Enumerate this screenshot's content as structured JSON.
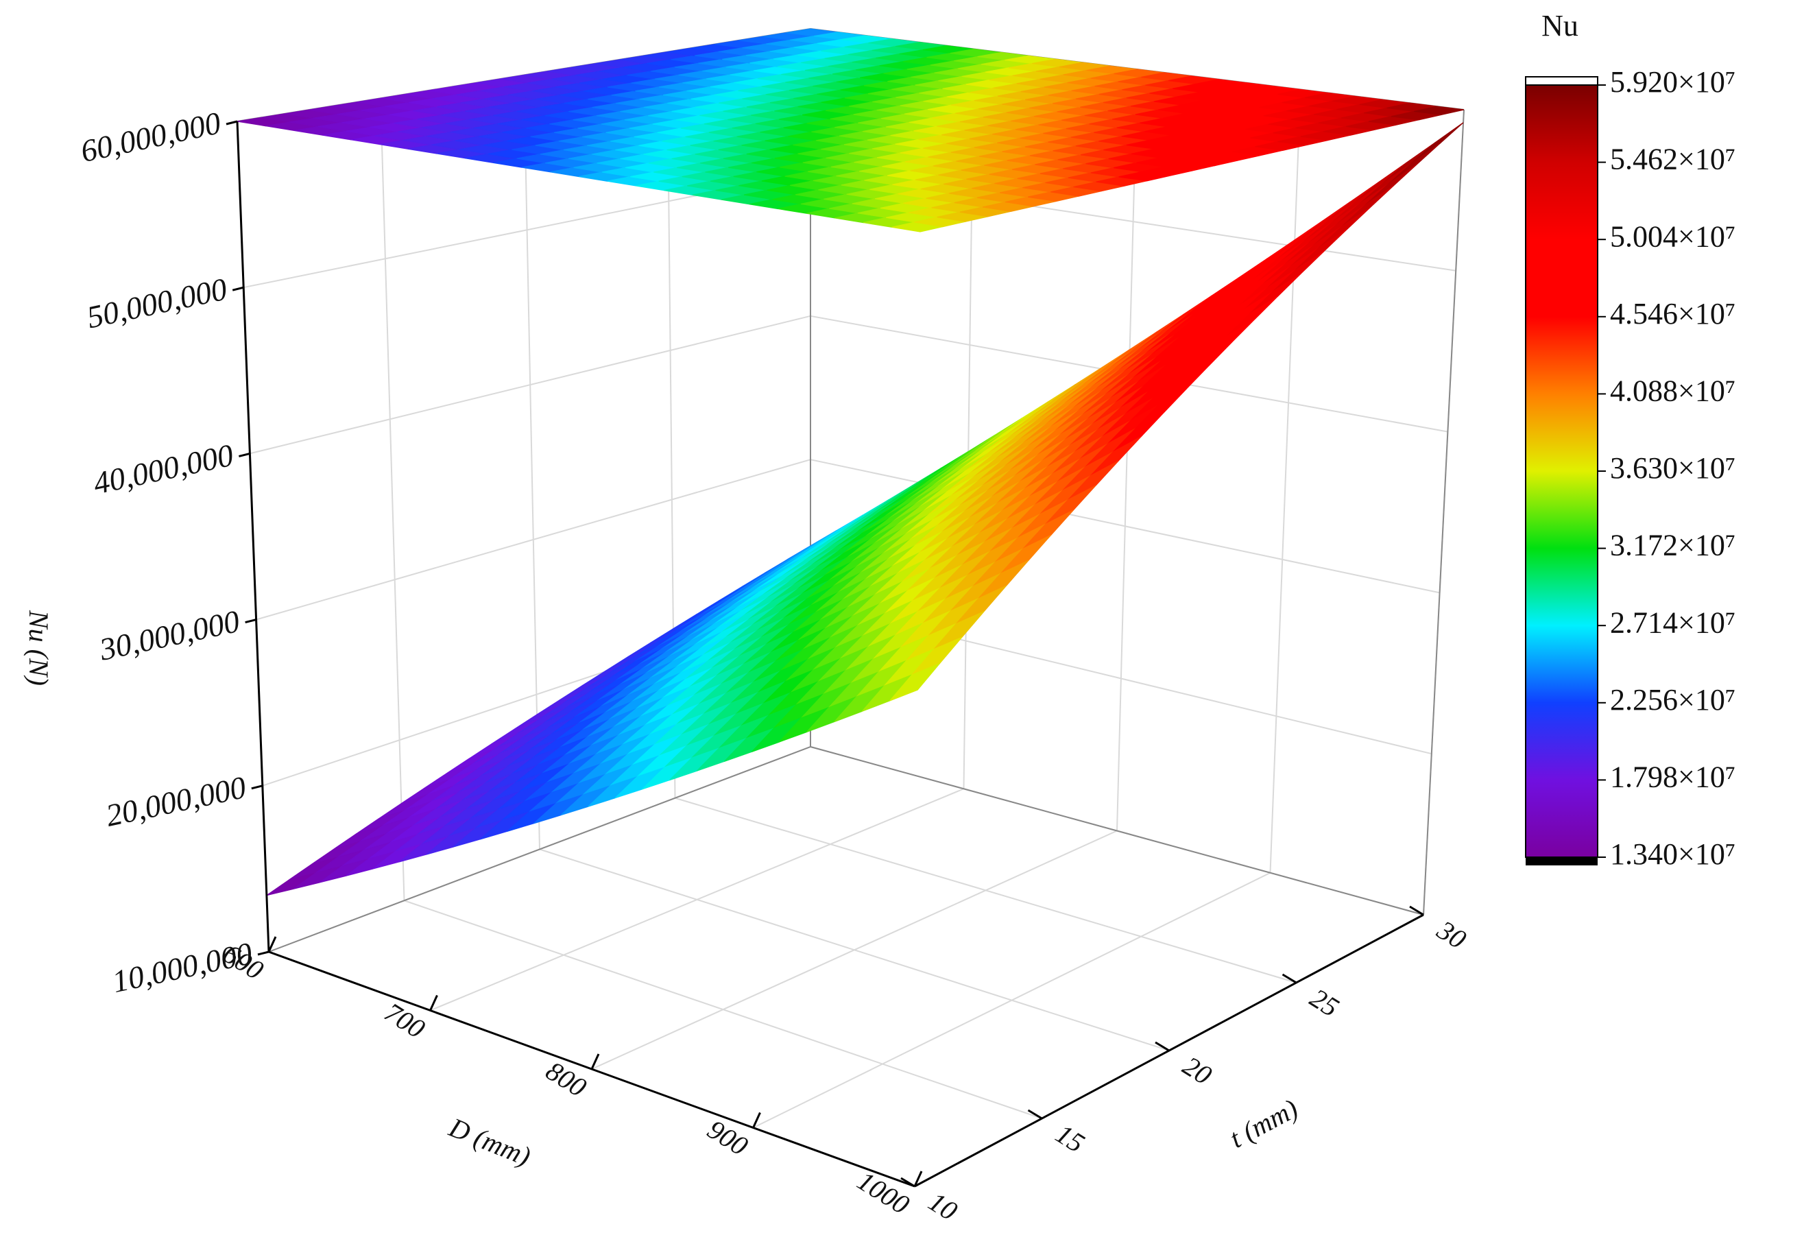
{
  "chart_data": {
    "type": "surface3d",
    "xlabel": "D (mm)",
    "ylabel": "t (mm)",
    "zlabel": "Nu (N)",
    "colorbar_title": "Nu",
    "x": [
      600,
      700,
      800,
      900,
      1000
    ],
    "y": [
      10,
      15,
      20,
      25,
      30
    ],
    "z": [
      [
        13400000,
        19050000,
        24700000,
        30350000,
        36000000
      ],
      [
        16050000,
        22490000,
        28930000,
        35360000,
        41800000
      ],
      [
        18700000,
        25930000,
        33150000,
        40380000,
        47600000
      ],
      [
        21350000,
        29360000,
        37380000,
        45390000,
        53400000
      ],
      [
        24000000,
        32800000,
        41600000,
        50400000,
        59200000
      ]
    ],
    "xlim": [
      600,
      1000
    ],
    "xticks": [
      600,
      700,
      800,
      900,
      1000
    ],
    "ylim": [
      10,
      30
    ],
    "yticks": [
      10,
      15,
      20,
      25,
      30
    ],
    "zlim": [
      10000000,
      60000000
    ],
    "zticks": [
      {
        "value": 10000000,
        "label": "10,000,000"
      },
      {
        "value": 20000000,
        "label": "20,000,000"
      },
      {
        "value": 30000000,
        "label": "30,000,000"
      },
      {
        "value": 40000000,
        "label": "40,000,000"
      },
      {
        "value": 50000000,
        "label": "50,000,000"
      },
      {
        "value": 60000000,
        "label": "60,000,000"
      }
    ],
    "clim": [
      13400000,
      59200000
    ],
    "cticks": [
      {
        "value": 13400000,
        "label": "1.340×10⁷"
      },
      {
        "value": 17980000,
        "label": "1.798×10⁷"
      },
      {
        "value": 22560000,
        "label": "2.256×10⁷"
      },
      {
        "value": 27140000,
        "label": "2.714×10⁷"
      },
      {
        "value": 31720000,
        "label": "3.172×10⁷"
      },
      {
        "value": 36300000,
        "label": "3.630×10⁷"
      },
      {
        "value": 40880000,
        "label": "4.088×10⁷"
      },
      {
        "value": 45460000,
        "label": "4.546×10⁷"
      },
      {
        "value": 50040000,
        "label": "5.004×10⁷"
      },
      {
        "value": 54620000,
        "label": "5.462×10⁷"
      },
      {
        "value": 59200000,
        "label": "5.920×10⁷"
      }
    ],
    "colorscale": [
      "#7a00a0",
      "#7010e0",
      "#1040ff",
      "#00f0ff",
      "#00e010",
      "#e0f000",
      "#ff8000",
      "#ff0000",
      "#ff0000",
      "#d00000",
      "#7a0000"
    ],
    "grid": true,
    "top_projection": true
  }
}
